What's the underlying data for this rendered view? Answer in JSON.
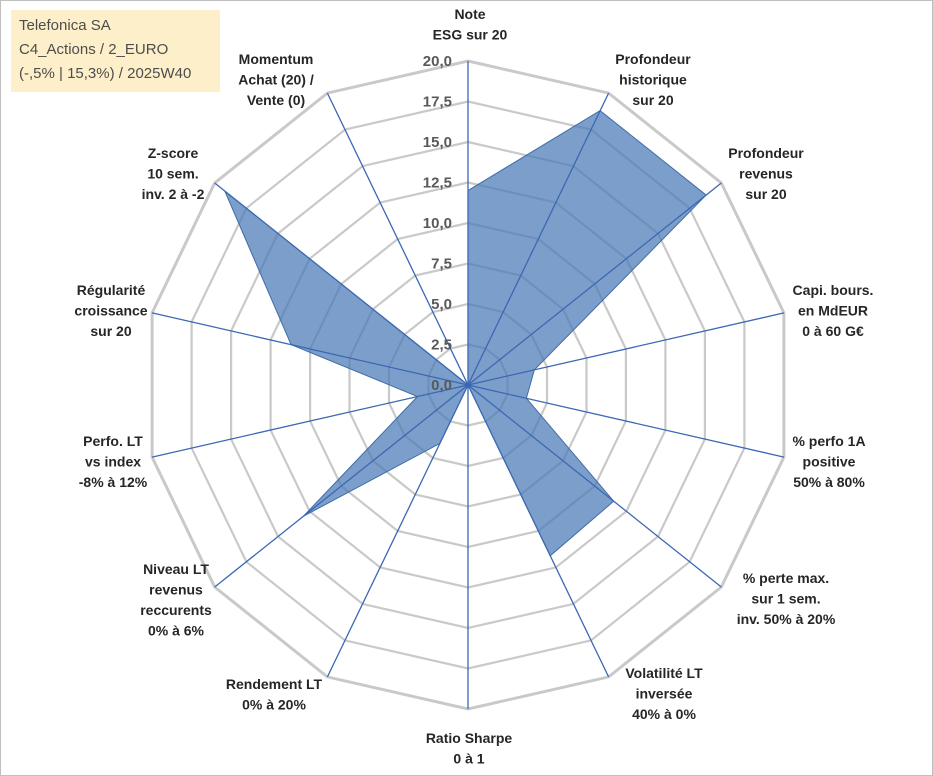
{
  "chart_data": {
    "type": "radar",
    "title_lines": [
      "Telefonica SA",
      "C4_Actions / 2_EURO",
      "(-,5% | 15,3%) / 2025W40"
    ],
    "r_range": [
      0,
      20
    ],
    "r_ticks": [
      "0,0",
      "2,5",
      "5,0",
      "7,5",
      "10,0",
      "12,5",
      "15,0",
      "17,5",
      "20,0"
    ],
    "grid": true,
    "colors": {
      "fill": "#4a78b5",
      "fill_opacity": 0.72,
      "spoke": "#3b68b4",
      "grid": "#c9c9c9"
    },
    "axes": [
      {
        "label": [
          "Note",
          "ESG sur 20"
        ],
        "value": 12.0
      },
      {
        "label": [
          "Profondeur",
          "historique",
          "sur 20"
        ],
        "value": 18.8
      },
      {
        "label": [
          "Profondeur",
          "revenus",
          "sur 20"
        ],
        "value": 18.8
      },
      {
        "label": [
          "Capi. bours.",
          "en MdEUR",
          "0 à 60 G€"
        ],
        "value": 4.2
      },
      {
        "label": [
          "% perfo 1A",
          "positive",
          "50% à 80%"
        ],
        "value": 3.7
      },
      {
        "label": [
          "% perte max.",
          "sur 1 sem.",
          "inv. 50% à 20%"
        ],
        "value": 11.5
      },
      {
        "label": [
          "Volatilité LT",
          "inversée",
          "40% à 0%"
        ],
        "value": 11.7
      },
      {
        "label": [
          "Ratio Sharpe",
          "0 à 1"
        ],
        "value": 0.0
      },
      {
        "label": [
          "Rendement LT",
          "0% à 20%"
        ],
        "value": 4.0
      },
      {
        "label": [
          "Niveau LT",
          "revenus",
          "reccurents",
          "0% à 6%"
        ],
        "value": 13.0
      },
      {
        "label": [
          "Perfo. LT",
          "vs index",
          "-8% à 12%"
        ],
        "value": 3.2
      },
      {
        "label": [
          "Régularité",
          "croissance",
          "sur 20"
        ],
        "value": 11.2
      },
      {
        "label": [
          "Z-score",
          "10 sem.",
          "inv. 2 à -2"
        ],
        "value": 19.2
      },
      {
        "label": [
          "Momentum",
          "Achat (20) /",
          "Vente (0)"
        ],
        "value": 0.0
      }
    ]
  }
}
